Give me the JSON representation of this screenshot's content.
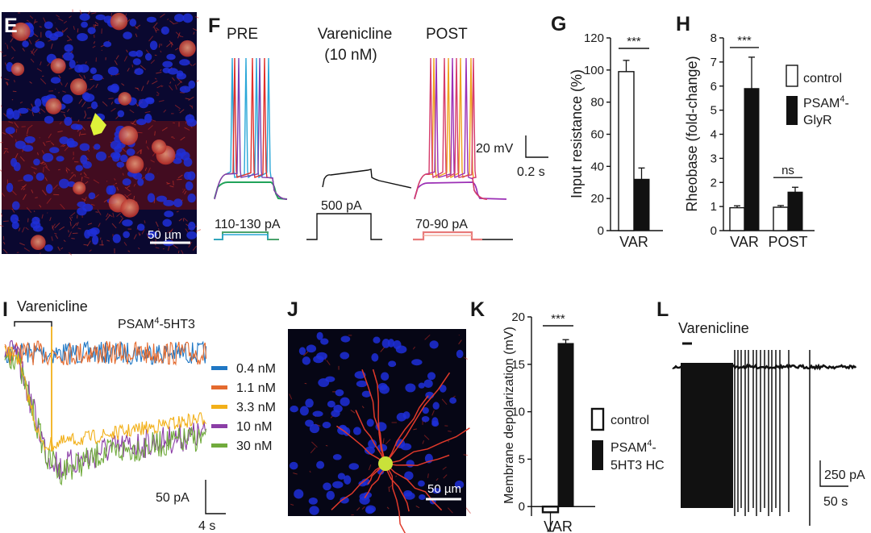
{
  "panels": {
    "E": {
      "label": "E",
      "scale_bar": "50 µm"
    },
    "F": {
      "label": "F",
      "titles": {
        "pre": "PRE",
        "varenicline": "Varenicline",
        "conc": "(10 nM)",
        "post": "POST"
      },
      "currents": {
        "pre": "110-130 pA",
        "mid": "500 pA",
        "post": "70-90 pA"
      },
      "scale": {
        "voltage": "20 mV",
        "time": "0.2 s"
      },
      "colors": {
        "pre": [
          "#2aa7d8",
          "#e0302a",
          "#7a3fb1",
          "#21a35a"
        ],
        "post": [
          "#f0a21e",
          "#9b2fb5",
          "#d63b6b",
          "#e7b93a"
        ]
      }
    },
    "I": {
      "label": "I",
      "drug": "Varenicline",
      "receptor_prefix": "PSAM",
      "receptor_sup": "4",
      "receptor_suffix": "-5HT3",
      "legend": [
        {
          "name": "0.4 nM",
          "color": "#1f77c4"
        },
        {
          "name": "1.1 nM",
          "color": "#e46a2e"
        },
        {
          "name": "3.3 nM",
          "color": "#f2b019"
        },
        {
          "name": "10 nM",
          "color": "#8b3ea6"
        },
        {
          "name": "30 nM",
          "color": "#71ab3d"
        }
      ],
      "scale": {
        "current": "50 pA",
        "time": "4 s"
      }
    },
    "J": {
      "label": "J",
      "scale_bar": "50 µm"
    },
    "L": {
      "label": "L",
      "drug": "Varenicline",
      "scale": {
        "current": "250 pA",
        "time": "50 s"
      }
    }
  },
  "chart_data": [
    {
      "panel": "G",
      "type": "bar",
      "categories": [
        "VAR"
      ],
      "series": [
        {
          "name": "control",
          "values": [
            99
          ],
          "errors": [
            7
          ]
        },
        {
          "name": "PSAM4-GlyR",
          "values": [
            32
          ],
          "errors": [
            7
          ]
        }
      ],
      "ylabel": "Input resistance (%)",
      "ylim": [
        0,
        120
      ],
      "yticks": [
        0,
        20,
        40,
        60,
        80,
        100,
        120
      ],
      "significance": [
        {
          "label": "***"
        }
      ]
    },
    {
      "panel": "H",
      "type": "bar",
      "categories": [
        "VAR",
        "POST"
      ],
      "series": [
        {
          "name": "control",
          "values": [
            0.95,
            0.97
          ],
          "errors": [
            0.08,
            0.07
          ]
        },
        {
          "name": "PSAM4-GlyR",
          "values": [
            5.9,
            1.6
          ],
          "errors": [
            1.3,
            0.2
          ]
        }
      ],
      "ylabel": "Rheobase (fold-change)",
      "ylim": [
        0,
        8
      ],
      "yticks": [
        0,
        1,
        2,
        3,
        4,
        5,
        6,
        7,
        8
      ],
      "legend": [
        {
          "name": "control",
          "fill": "#ffffff"
        },
        {
          "name_prefix": "PSAM",
          "sup": "4",
          "name_suffix": "-",
          "line2": "GlyR",
          "fill": "#111111"
        }
      ],
      "significance": [
        {
          "label": "***"
        },
        {
          "label": "ns"
        }
      ]
    },
    {
      "panel": "K",
      "type": "bar",
      "categories": [
        "VAR"
      ],
      "series": [
        {
          "name": "control",
          "values": [
            -0.6
          ],
          "errors": [
            2.0
          ]
        },
        {
          "name": "PSAM4-5HT3 HC",
          "values": [
            17.2
          ],
          "errors": [
            0.4
          ]
        }
      ],
      "ylabel": "Membrane depolarization (mV)",
      "ylim": [
        -1,
        20
      ],
      "yticks": [
        0,
        5,
        10,
        15,
        20
      ],
      "legend": [
        {
          "name": "control",
          "fill": "#ffffff"
        },
        {
          "name_prefix": "PSAM",
          "sup": "4",
          "name_suffix": "-",
          "line2": "5HT3 HC",
          "fill": "#111111"
        }
      ],
      "significance": [
        {
          "label": "***"
        }
      ]
    }
  ]
}
